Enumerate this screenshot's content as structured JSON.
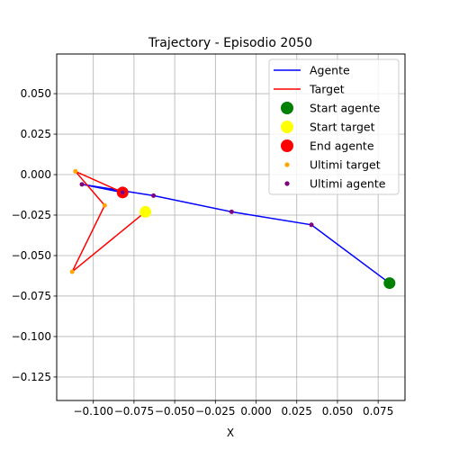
{
  "chart_data": {
    "type": "line",
    "title": "Trajectory - Episodio 2050",
    "xlabel": "X",
    "ylabel": "",
    "xlim": [
      -0.1225,
      0.0915
    ],
    "ylim": [
      -0.1395,
      0.0745
    ],
    "xticks": [
      -0.1,
      -0.075,
      -0.05,
      -0.025,
      0.0,
      0.025,
      0.05,
      0.075
    ],
    "xtick_labels": [
      "−0.100",
      "−0.075",
      "−0.050",
      "−0.025",
      "0.000",
      "0.025",
      "0.050",
      "0.075"
    ],
    "yticks": [
      0.05,
      0.025,
      0.0,
      -0.025,
      -0.05,
      -0.075,
      -0.1,
      -0.125
    ],
    "ytick_labels": [
      "0.050",
      "0.025",
      "0.000",
      "−0.025",
      "−0.050",
      "−0.075",
      "−0.100",
      "−0.125"
    ],
    "grid": true,
    "legend_position": "top-right",
    "colors": {
      "agent": "#0000ff",
      "target": "#ff0000",
      "start_agent": "#008000",
      "start_target": "#ffff00",
      "end_agent": "#ff0000",
      "last_target": "#ffa500",
      "last_agent": "#800080"
    },
    "series": [
      {
        "name": "Agente",
        "x": [
          0.082,
          0.034,
          -0.015,
          -0.063,
          -0.107,
          -0.082
        ],
        "y": [
          -0.067,
          -0.031,
          -0.023,
          -0.013,
          -0.006,
          -0.011
        ]
      },
      {
        "name": "Target",
        "x": [
          -0.068,
          -0.113,
          -0.093,
          -0.111,
          -0.082
        ],
        "y": [
          -0.023,
          -0.06,
          -0.019,
          0.002,
          -0.011
        ]
      }
    ],
    "markers": [
      {
        "name": "Start agente",
        "x": 0.082,
        "y": -0.067
      },
      {
        "name": "Start target",
        "x": -0.068,
        "y": -0.023
      },
      {
        "name": "End agente",
        "x": -0.082,
        "y": -0.011
      }
    ],
    "scatter": [
      {
        "name": "Ultimi target",
        "x": [
          -0.113,
          -0.093,
          -0.111,
          -0.082
        ],
        "y": [
          -0.06,
          -0.019,
          0.002,
          -0.011
        ]
      },
      {
        "name": "Ultimi agente",
        "x": [
          0.034,
          -0.015,
          -0.063,
          -0.107,
          -0.082
        ],
        "y": [
          -0.031,
          -0.023,
          -0.013,
          -0.006,
          -0.011
        ]
      }
    ],
    "legend": [
      "Agente",
      "Target",
      "Start agente",
      "Start target",
      "End agente",
      "Ultimi target",
      "Ultimi agente"
    ]
  }
}
